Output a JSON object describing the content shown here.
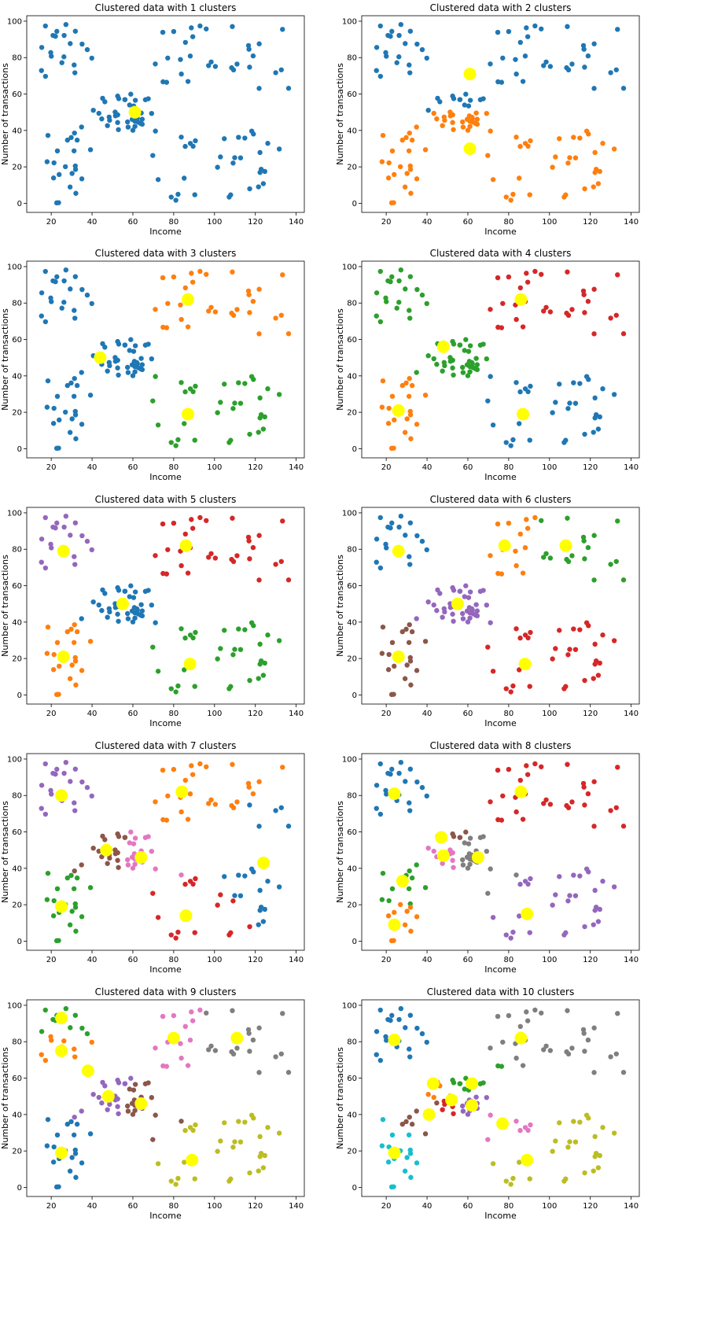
{
  "colors": {
    "palette": [
      "#1f77b4",
      "#ff7f0e",
      "#2ca02c",
      "#d62728",
      "#9467bd",
      "#8c564b",
      "#e377c2",
      "#7f7f7f",
      "#bcbd22",
      "#17becf"
    ],
    "centroid": "#ffff00"
  },
  "axes_common": {
    "xlabel": "Income",
    "ylabel": "Number of transactions",
    "xlim": [
      8,
      144
    ],
    "ylim": [
      -5,
      103
    ],
    "xticks": [
      20,
      40,
      60,
      80,
      100,
      120,
      140
    ],
    "yticks": [
      0,
      20,
      40,
      60,
      80,
      100
    ],
    "grid": false
  },
  "chart_data": [
    {
      "type": "scatter",
      "title": "Clustered data with 1 clusters",
      "k": 1,
      "centroids": [
        [
          61,
          50
        ]
      ]
    },
    {
      "type": "scatter",
      "title": "Clustered data with 2 clusters",
      "k": 2,
      "centroids": [
        [
          61,
          71
        ],
        [
          61,
          30
        ]
      ]
    },
    {
      "type": "scatter",
      "title": "Clustered data with 3 clusters",
      "k": 3,
      "centroids": [
        [
          44,
          50
        ],
        [
          87,
          82
        ],
        [
          87,
          19
        ]
      ]
    },
    {
      "type": "scatter",
      "title": "Clustered data with 4 clusters",
      "k": 4,
      "centroids": [
        [
          87,
          19
        ],
        [
          26,
          21
        ],
        [
          48,
          56
        ],
        [
          86,
          82
        ]
      ]
    },
    {
      "type": "scatter",
      "title": "Clustered data with 5 clusters",
      "k": 5,
      "centroids": [
        [
          55,
          50
        ],
        [
          26,
          21
        ],
        [
          88,
          17
        ],
        [
          86,
          82
        ],
        [
          26,
          79
        ]
      ]
    },
    {
      "type": "scatter",
      "title": "Clustered data with 6 clusters",
      "k": 6,
      "centroids": [
        [
          26,
          79
        ],
        [
          78,
          82
        ],
        [
          108,
          82
        ],
        [
          88,
          17
        ],
        [
          55,
          50
        ],
        [
          26,
          21
        ]
      ]
    },
    {
      "type": "scatter",
      "title": "Clustered data with 7 clusters",
      "k": 7,
      "centroids": [
        [
          124,
          43
        ],
        [
          84,
          82
        ],
        [
          25,
          19
        ],
        [
          86,
          14
        ],
        [
          25,
          80
        ],
        [
          47,
          50
        ],
        [
          64,
          46
        ]
      ]
    },
    {
      "type": "scatter",
      "title": "Clustered data with 8 clusters",
      "k": 8,
      "centroids": [
        [
          24,
          81
        ],
        [
          24,
          9
        ],
        [
          28,
          33
        ],
        [
          86,
          82
        ],
        [
          89,
          15
        ],
        [
          47,
          57
        ],
        [
          48,
          47
        ],
        [
          65,
          46
        ]
      ]
    },
    {
      "type": "scatter",
      "title": "Clustered data with 9 clusters",
      "k": 9,
      "centroids": [
        [
          25,
          19
        ],
        [
          25,
          75
        ],
        [
          25,
          93
        ],
        [
          38,
          64
        ],
        [
          48,
          50
        ],
        [
          64,
          46
        ],
        [
          80,
          82
        ],
        [
          111,
          82
        ],
        [
          89,
          15
        ]
      ]
    },
    {
      "type": "scatter",
      "title": "Clustered data with 10 clusters",
      "k": 10,
      "centroids": [
        [
          24,
          81
        ],
        [
          43,
          57
        ],
        [
          62,
          57
        ],
        [
          52,
          48
        ],
        [
          62,
          45
        ],
        [
          41,
          40
        ],
        [
          77,
          35
        ],
        [
          86,
          82
        ],
        [
          89,
          15
        ],
        [
          24,
          19
        ]
      ]
    }
  ]
}
